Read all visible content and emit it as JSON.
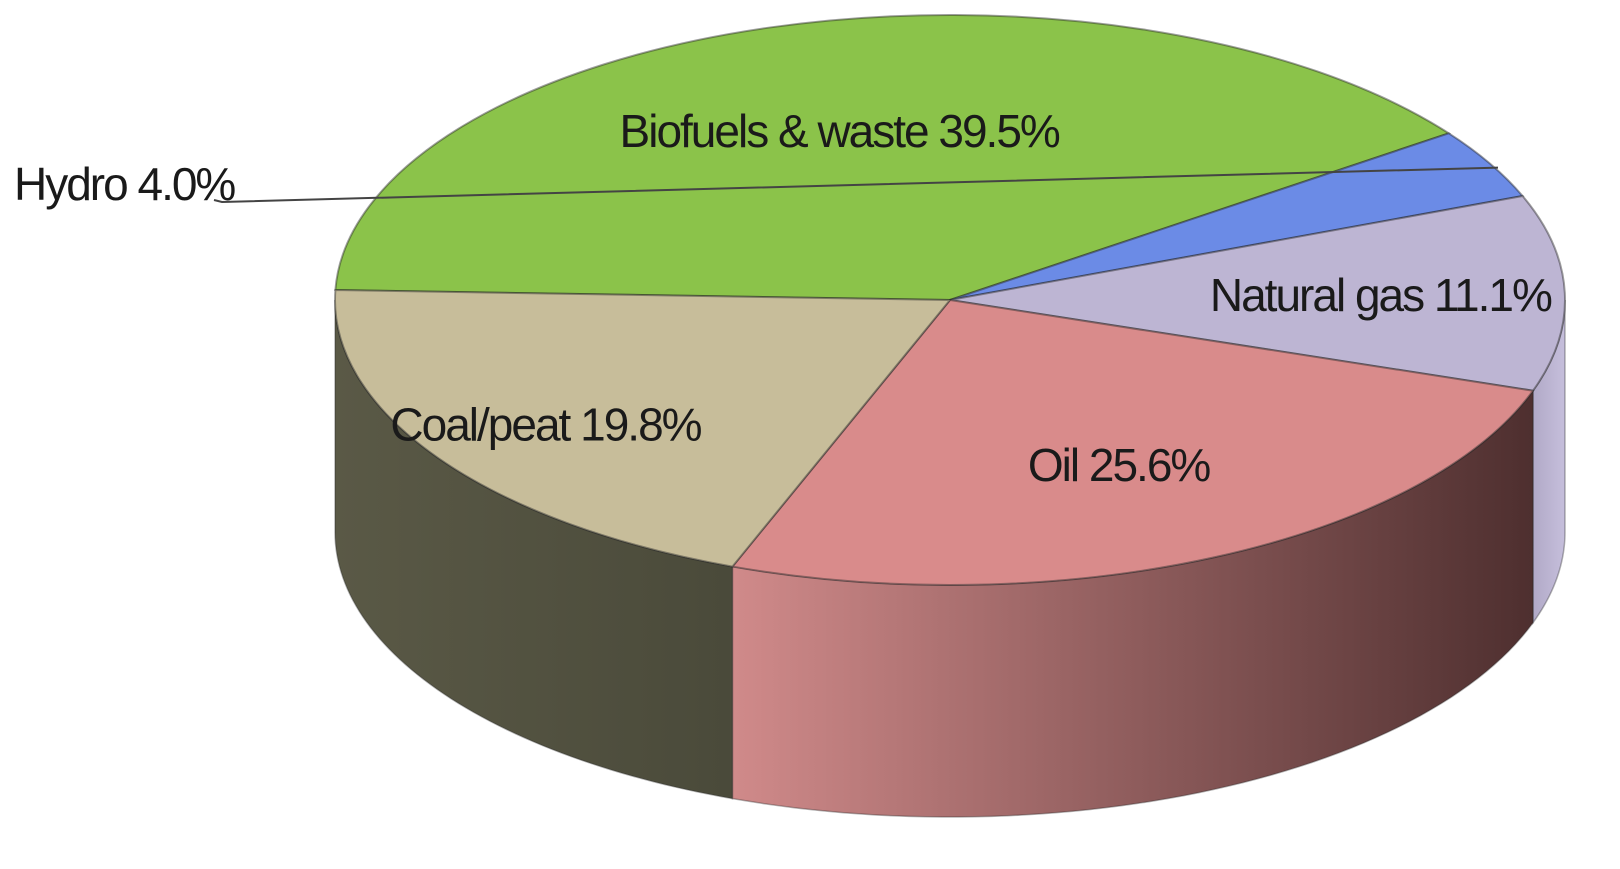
{
  "chart_data": {
    "type": "pie",
    "style": "3d",
    "title": "",
    "legend": "none",
    "slices": [
      {
        "name": "Biofuels & waste",
        "value": 39.5,
        "label": "Biofuels & waste 39.5%",
        "color": "#8bc34a",
        "side_color": "#6c9a36"
      },
      {
        "name": "Hydro",
        "value": 4.0,
        "label": "Hydro 4.0%",
        "color": "#6b8be6",
        "side_color": "#4f6dc4"
      },
      {
        "name": "Natural gas",
        "value": 11.1,
        "label": "Natural gas 11.1%",
        "color": "#bdb5d3",
        "side_color": "#aaa1c4"
      },
      {
        "name": "Oil",
        "value": 25.6,
        "label": "Oil 25.6%",
        "color": "#d98b8b",
        "side_color": "#8a5555"
      },
      {
        "name": "Coal/peat",
        "value": 19.8,
        "label": "Coal/peat 19.8%",
        "color": "#c7bd9a",
        "side_color": "#5e5c4a"
      }
    ]
  }
}
